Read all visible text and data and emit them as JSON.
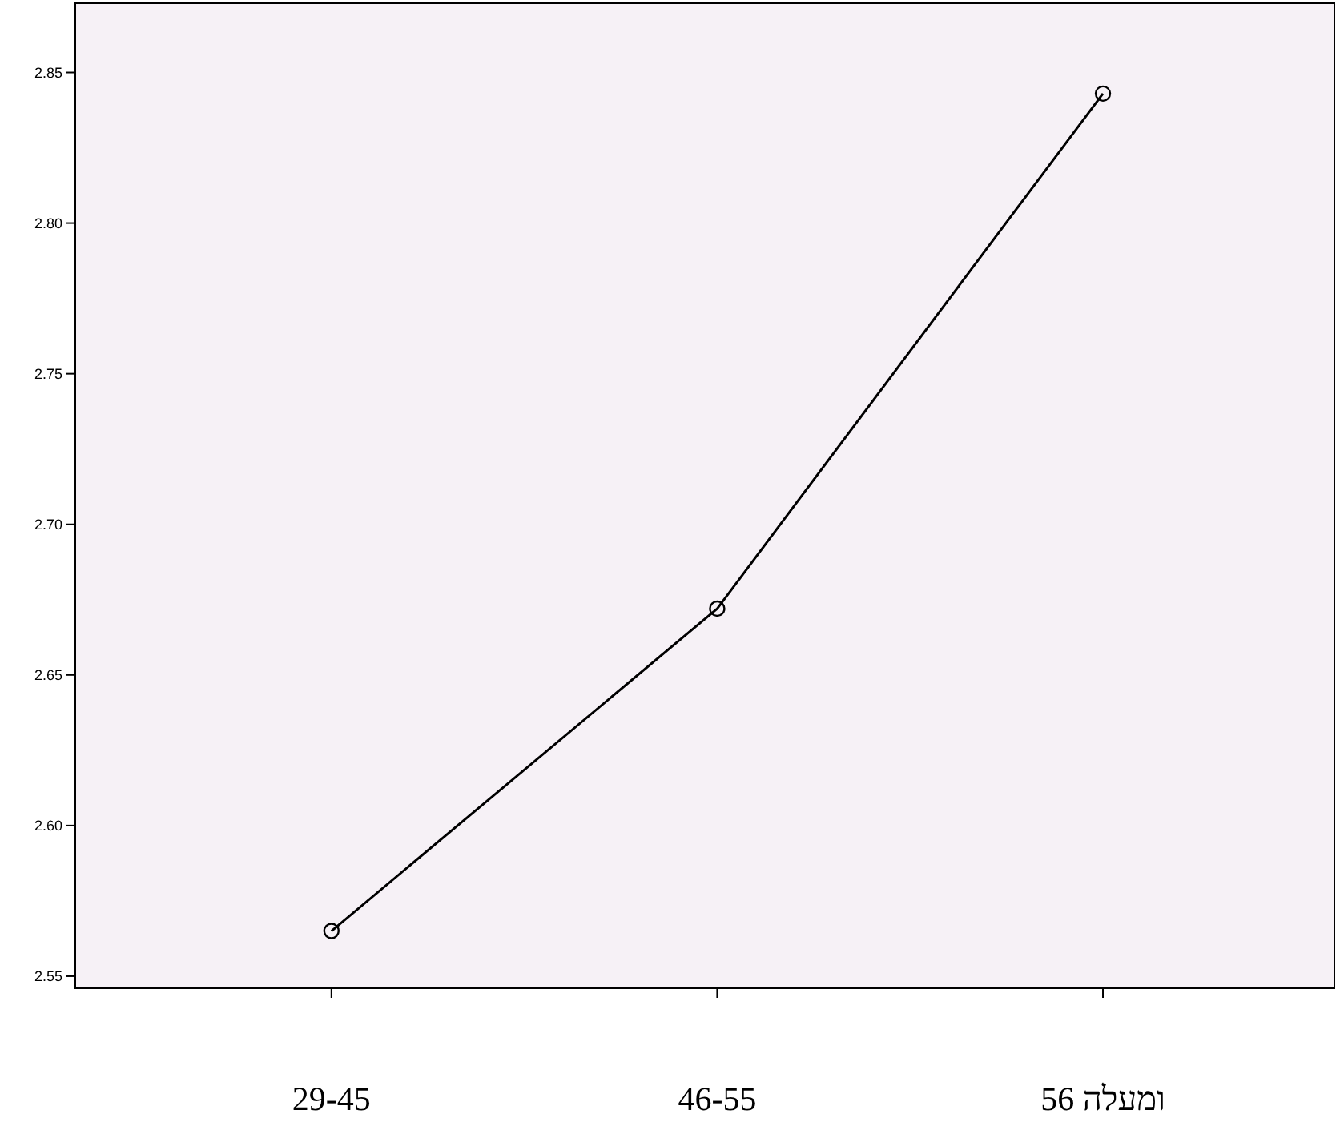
{
  "chart_data": {
    "type": "line",
    "categories": [
      "29-45",
      "46-55",
      "56 ומעלה"
    ],
    "series": [
      {
        "color": "#000000",
        "values": [
          2.565,
          2.672,
          2.843
        ]
      }
    ],
    "ylim": [
      2.546,
      2.873
    ],
    "yticks": [
      {
        "value": 2.55,
        "label": "2.55"
      },
      {
        "value": 2.6,
        "label": "2.60"
      },
      2.65,
      {
        "value": 2.7,
        "label": "2.70"
      },
      2.75,
      {
        "value": 2.8,
        "label": "2.80"
      },
      2.85
    ],
    "marker": "circle",
    "line_style": "solid",
    "grid": false
  }
}
